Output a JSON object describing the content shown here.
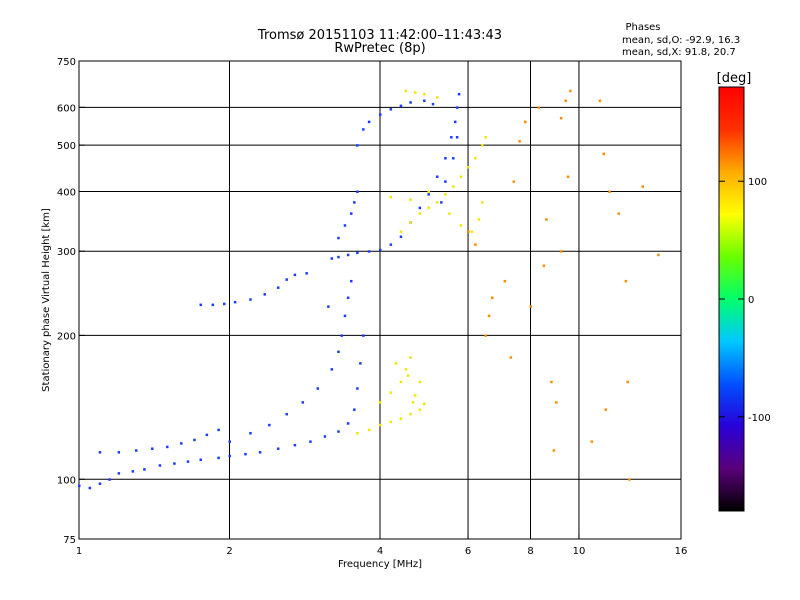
{
  "chart_data": {
    "type": "scatter",
    "title": "Tromsø 20151103 11:42:00–11:43:43",
    "subtitle": "RwPretec (8p)",
    "info": {
      "heading": "Phases",
      "line1": "mean, sd,O: -92.9, 16.3",
      "line2": "mean, sd,X:  91.8, 20.7"
    },
    "xlabel": "Frequency [MHz]",
    "ylabel": "Stationary phase Virtual Height [km]",
    "x_scale": "log",
    "y_scale": "log",
    "xlim": [
      1,
      16
    ],
    "ylim": [
      75,
      750
    ],
    "x_ticks": [
      1,
      2,
      4,
      6,
      8,
      10,
      16
    ],
    "x_tick_labels": [
      "1",
      "2",
      "4",
      "6",
      "8",
      "10",
      "16"
    ],
    "y_ticks": [
      75,
      100,
      200,
      300,
      400,
      500,
      600,
      750
    ],
    "y_tick_labels": [
      "75",
      "100",
      "200",
      "300",
      "400",
      "500",
      "600",
      "750"
    ],
    "x_gridlines": [
      2,
      4,
      6,
      8,
      10
    ],
    "y_gridlines": [
      100,
      200,
      300,
      400,
      500,
      600
    ],
    "grid": true,
    "colorbar": {
      "unit": "[deg]",
      "tick_values": [
        100,
        0,
        -100
      ],
      "tick_labels": [
        "100",
        "0",
        "-100"
      ],
      "range": [
        -180,
        180
      ],
      "stops": [
        "#000000",
        "#5a007a",
        "#2a00d8",
        "#0050ff",
        "#00c8ff",
        "#00ff6a",
        "#6aff00",
        "#ffff00",
        "#ffaa00",
        "#ff3000",
        "#ff0000"
      ]
    },
    "series": [
      {
        "name": "O",
        "marker_color": "#1a3cff",
        "points": [
          [
            1.0,
            97
          ],
          [
            1.05,
            96
          ],
          [
            1.1,
            98
          ],
          [
            1.15,
            100
          ],
          [
            1.2,
            103
          ],
          [
            1.28,
            104
          ],
          [
            1.35,
            105
          ],
          [
            1.45,
            107
          ],
          [
            1.55,
            108
          ],
          [
            1.65,
            109
          ],
          [
            1.75,
            110
          ],
          [
            1.9,
            111
          ],
          [
            2.0,
            112
          ],
          [
            2.15,
            113
          ],
          [
            2.3,
            114
          ],
          [
            2.5,
            116
          ],
          [
            2.7,
            118
          ],
          [
            2.9,
            120
          ],
          [
            3.1,
            123
          ],
          [
            3.3,
            126
          ],
          [
            3.45,
            131
          ],
          [
            3.55,
            140
          ],
          [
            3.6,
            155
          ],
          [
            3.65,
            175
          ],
          [
            3.7,
            200
          ],
          [
            1.1,
            114
          ],
          [
            1.2,
            114
          ],
          [
            1.3,
            115
          ],
          [
            1.4,
            116
          ],
          [
            1.5,
            117
          ],
          [
            1.6,
            119
          ],
          [
            1.7,
            121
          ],
          [
            1.8,
            124
          ],
          [
            1.9,
            127
          ],
          [
            2.0,
            120
          ],
          [
            2.2,
            125
          ],
          [
            2.4,
            130
          ],
          [
            2.6,
            137
          ],
          [
            2.8,
            145
          ],
          [
            3.0,
            155
          ],
          [
            3.2,
            170
          ],
          [
            3.3,
            185
          ],
          [
            3.35,
            200
          ],
          [
            3.4,
            220
          ],
          [
            3.45,
            240
          ],
          [
            3.5,
            260
          ],
          [
            3.15,
            230
          ],
          [
            1.75,
            232
          ],
          [
            1.85,
            232
          ],
          [
            1.95,
            233
          ],
          [
            2.05,
            235
          ],
          [
            2.2,
            238
          ],
          [
            2.35,
            244
          ],
          [
            2.5,
            252
          ],
          [
            2.6,
            262
          ],
          [
            2.7,
            268
          ],
          [
            2.85,
            270
          ],
          [
            3.2,
            290
          ],
          [
            3.3,
            292
          ],
          [
            3.45,
            295
          ],
          [
            3.6,
            298
          ],
          [
            3.8,
            300
          ],
          [
            4.0,
            302
          ],
          [
            4.2,
            310
          ],
          [
            4.4,
            322
          ],
          [
            4.6,
            345
          ],
          [
            4.8,
            370
          ],
          [
            5.0,
            395
          ],
          [
            5.2,
            430
          ],
          [
            5.4,
            470
          ],
          [
            5.55,
            520
          ],
          [
            5.65,
            560
          ],
          [
            5.7,
            600
          ],
          [
            5.75,
            640
          ],
          [
            3.3,
            320
          ],
          [
            3.4,
            340
          ],
          [
            3.5,
            360
          ],
          [
            3.55,
            380
          ],
          [
            3.6,
            400
          ],
          [
            3.6,
            500
          ],
          [
            3.7,
            540
          ],
          [
            3.8,
            560
          ],
          [
            4.0,
            580
          ],
          [
            4.2,
            595
          ],
          [
            4.4,
            605
          ],
          [
            4.6,
            615
          ],
          [
            4.9,
            620
          ],
          [
            5.1,
            610
          ],
          [
            5.3,
            380
          ],
          [
            5.4,
            420
          ],
          [
            5.6,
            470
          ],
          [
            5.7,
            520
          ]
        ]
      },
      {
        "name": "X",
        "marker_color": "#f2e600",
        "points": [
          [
            3.6,
            125
          ],
          [
            3.8,
            127
          ],
          [
            4.0,
            130
          ],
          [
            4.2,
            132
          ],
          [
            4.4,
            134
          ],
          [
            4.6,
            137
          ],
          [
            4.8,
            140
          ],
          [
            4.9,
            144
          ],
          [
            4.0,
            145
          ],
          [
            4.2,
            152
          ],
          [
            4.4,
            160
          ],
          [
            4.5,
            170
          ],
          [
            4.6,
            180
          ],
          [
            4.7,
            150
          ],
          [
            4.8,
            160
          ],
          [
            4.3,
            175
          ],
          [
            4.55,
            165
          ],
          [
            4.65,
            145
          ],
          [
            4.4,
            330
          ],
          [
            4.6,
            345
          ],
          [
            4.8,
            360
          ],
          [
            5.0,
            370
          ],
          [
            5.2,
            380
          ],
          [
            5.4,
            395
          ],
          [
            5.6,
            410
          ],
          [
            5.8,
            430
          ],
          [
            6.0,
            450
          ],
          [
            6.2,
            470
          ],
          [
            6.4,
            500
          ],
          [
            6.5,
            520
          ],
          [
            4.2,
            390
          ],
          [
            4.6,
            385
          ],
          [
            5.0,
            400
          ],
          [
            5.5,
            360
          ],
          [
            5.8,
            340
          ],
          [
            6.1,
            330
          ],
          [
            6.3,
            350
          ],
          [
            6.4,
            380
          ],
          [
            4.5,
            650
          ],
          [
            4.7,
            645
          ],
          [
            4.9,
            640
          ],
          [
            5.2,
            630
          ]
        ]
      },
      {
        "name": "scattered",
        "marker_color": "#ff8c00",
        "points": [
          [
            6.5,
            200
          ],
          [
            6.6,
            220
          ],
          [
            7.3,
            180
          ],
          [
            8.0,
            230
          ],
          [
            8.5,
            280
          ],
          [
            9.2,
            300
          ],
          [
            9.6,
            650
          ],
          [
            9.4,
            620
          ],
          [
            9.2,
            570
          ],
          [
            8.3,
            600
          ],
          [
            7.8,
            560
          ],
          [
            7.4,
            420
          ],
          [
            7.1,
            260
          ],
          [
            6.7,
            240
          ],
          [
            11.0,
            620
          ],
          [
            11.2,
            480
          ],
          [
            11.5,
            400
          ],
          [
            12.0,
            360
          ],
          [
            12.4,
            260
          ],
          [
            12.5,
            160
          ],
          [
            12.6,
            100
          ],
          [
            11.3,
            140
          ],
          [
            10.6,
            120
          ],
          [
            9.0,
            145
          ],
          [
            8.9,
            115
          ],
          [
            8.8,
            160
          ],
          [
            6.0,
            330
          ],
          [
            6.2,
            310
          ],
          [
            7.6,
            510
          ],
          [
            8.6,
            350
          ],
          [
            9.5,
            430
          ],
          [
            13.4,
            410
          ],
          [
            14.4,
            295
          ]
        ]
      }
    ]
  }
}
